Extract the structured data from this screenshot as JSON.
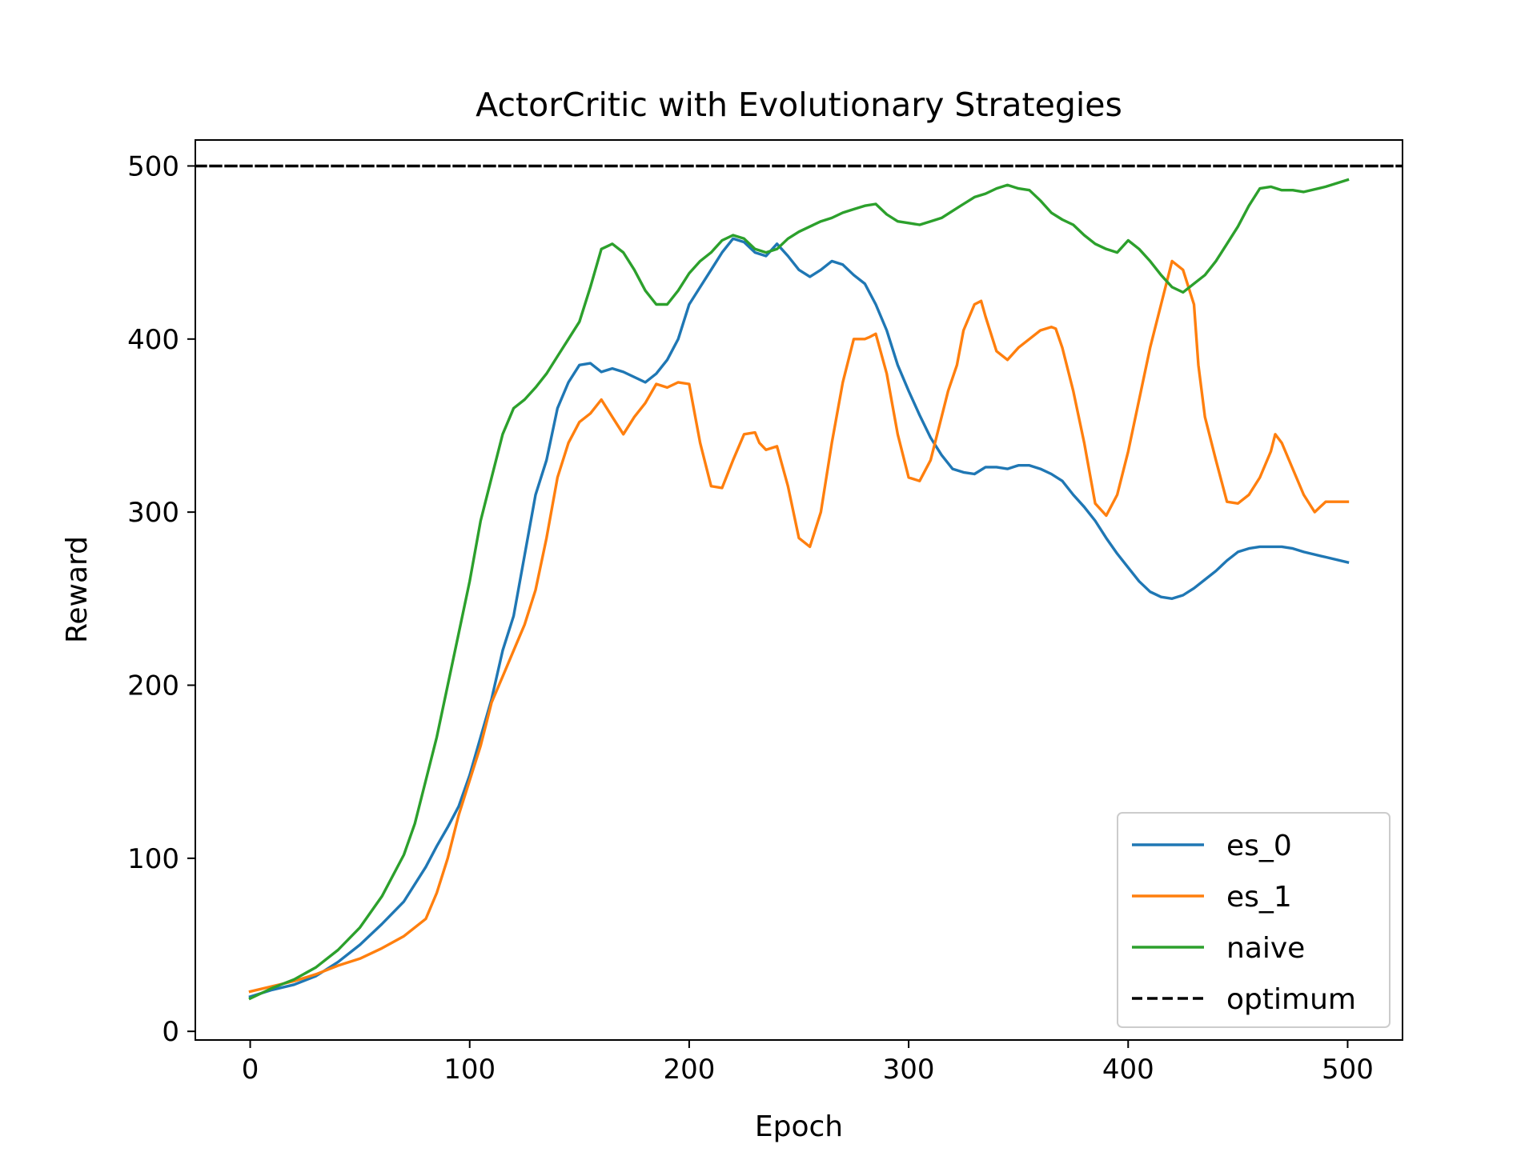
{
  "chart_data": {
    "type": "line",
    "title": "ActorCritic with Evolutionary Strategies",
    "xlabel": "Epoch",
    "ylabel": "Reward",
    "xlim": [
      -25,
      525
    ],
    "ylim": [
      -5,
      515
    ],
    "xticks": [
      0,
      100,
      200,
      300,
      400,
      500
    ],
    "yticks": [
      0,
      100,
      200,
      300,
      400,
      500
    ],
    "grid": false,
    "legend_position": "lower-right",
    "series": [
      {
        "name": "es_0",
        "color": "#1f77b4",
        "dash": "solid",
        "x": [
          0,
          10,
          20,
          30,
          40,
          50,
          60,
          70,
          80,
          85,
          90,
          95,
          100,
          105,
          110,
          115,
          120,
          125,
          130,
          135,
          140,
          145,
          150,
          155,
          160,
          165,
          170,
          175,
          180,
          185,
          190,
          195,
          200,
          205,
          210,
          215,
          220,
          225,
          230,
          235,
          240,
          245,
          250,
          255,
          260,
          265,
          270,
          275,
          280,
          285,
          290,
          295,
          300,
          305,
          310,
          315,
          320,
          325,
          330,
          335,
          340,
          345,
          350,
          355,
          360,
          365,
          370,
          375,
          380,
          385,
          390,
          395,
          400,
          405,
          410,
          415,
          420,
          425,
          430,
          435,
          440,
          445,
          450,
          455,
          460,
          465,
          470,
          475,
          480,
          490,
          500
        ],
        "y": [
          20,
          24,
          27,
          32,
          40,
          50,
          62,
          75,
          95,
          107,
          118,
          130,
          148,
          170,
          192,
          220,
          240,
          275,
          310,
          330,
          360,
          375,
          385,
          386,
          381,
          383,
          381,
          378,
          375,
          380,
          388,
          400,
          420,
          430,
          440,
          450,
          458,
          456,
          450,
          448,
          455,
          448,
          440,
          436,
          440,
          445,
          443,
          437,
          432,
          420,
          405,
          385,
          370,
          356,
          343,
          333,
          325,
          323,
          322,
          326,
          326,
          325,
          327,
          327,
          325,
          322,
          318,
          310,
          303,
          295,
          285,
          276,
          268,
          260,
          254,
          251,
          250,
          252,
          256,
          261,
          266,
          272,
          277,
          279,
          280,
          280,
          280,
          279,
          277,
          274,
          271
        ]
      },
      {
        "name": "es_1",
        "color": "#ff7f0e",
        "dash": "solid",
        "x": [
          0,
          10,
          20,
          30,
          40,
          50,
          60,
          70,
          80,
          85,
          90,
          95,
          100,
          105,
          110,
          115,
          120,
          125,
          130,
          135,
          140,
          145,
          150,
          155,
          160,
          165,
          170,
          175,
          180,
          185,
          190,
          195,
          200,
          205,
          210,
          215,
          220,
          225,
          230,
          232,
          235,
          240,
          245,
          250,
          255,
          260,
          265,
          270,
          275,
          280,
          282,
          285,
          290,
          295,
          300,
          305,
          310,
          315,
          318,
          322,
          325,
          330,
          333,
          335,
          340,
          345,
          350,
          355,
          360,
          365,
          367,
          370,
          375,
          380,
          385,
          390,
          395,
          400,
          405,
          410,
          415,
          420,
          425,
          430,
          432,
          435,
          440,
          445,
          450,
          455,
          460,
          465,
          467,
          470,
          475,
          480,
          485,
          490,
          495,
          500
        ],
        "y": [
          23,
          26,
          29,
          33,
          38,
          42,
          48,
          55,
          65,
          80,
          100,
          125,
          145,
          165,
          190,
          205,
          220,
          235,
          255,
          285,
          320,
          340,
          352,
          357,
          365,
          355,
          345,
          355,
          363,
          374,
          372,
          375,
          374,
          340,
          315,
          314,
          330,
          345,
          346,
          340,
          336,
          338,
          315,
          285,
          280,
          300,
          340,
          375,
          400,
          400,
          401,
          403,
          380,
          345,
          320,
          318,
          330,
          355,
          370,
          385,
          405,
          420,
          422,
          413,
          393,
          388,
          395,
          400,
          405,
          407,
          406,
          395,
          370,
          340,
          305,
          298,
          310,
          335,
          365,
          395,
          420,
          445,
          440,
          420,
          385,
          355,
          330,
          306,
          305,
          310,
          320,
          335,
          345,
          340,
          325,
          310,
          300,
          306,
          306,
          306
        ]
      },
      {
        "name": "naive",
        "color": "#2ca02c",
        "dash": "solid",
        "x": [
          0,
          10,
          20,
          30,
          40,
          50,
          60,
          70,
          75,
          80,
          85,
          90,
          95,
          100,
          105,
          110,
          115,
          120,
          125,
          130,
          135,
          140,
          145,
          150,
          155,
          160,
          165,
          170,
          175,
          180,
          185,
          190,
          195,
          200,
          205,
          210,
          215,
          220,
          225,
          230,
          235,
          240,
          245,
          250,
          255,
          260,
          265,
          270,
          275,
          280,
          285,
          290,
          295,
          300,
          305,
          310,
          315,
          320,
          325,
          330,
          335,
          340,
          345,
          350,
          355,
          360,
          365,
          370,
          375,
          380,
          385,
          390,
          395,
          400,
          405,
          410,
          415,
          420,
          425,
          430,
          435,
          440,
          445,
          450,
          455,
          460,
          465,
          470,
          475,
          480,
          490,
          500
        ],
        "y": [
          19,
          25,
          30,
          37,
          47,
          60,
          78,
          102,
          120,
          145,
          170,
          200,
          230,
          260,
          295,
          320,
          345,
          360,
          365,
          372,
          380,
          390,
          400,
          410,
          430,
          452,
          455,
          450,
          440,
          428,
          420,
          420,
          428,
          438,
          445,
          450,
          457,
          460,
          458,
          452,
          450,
          452,
          458,
          462,
          465,
          468,
          470,
          473,
          475,
          477,
          478,
          472,
          468,
          467,
          466,
          468,
          470,
          474,
          478,
          482,
          484,
          487,
          489,
          487,
          486,
          480,
          473,
          469,
          466,
          460,
          455,
          452,
          450,
          457,
          452,
          445,
          437,
          430,
          427,
          432,
          437,
          445,
          455,
          465,
          477,
          487,
          488,
          486,
          486,
          485,
          488,
          492
        ]
      },
      {
        "name": "optimum",
        "color": "#000000",
        "dash": "dashed",
        "x": [
          -25,
          525
        ],
        "y": [
          500,
          500
        ]
      }
    ]
  }
}
